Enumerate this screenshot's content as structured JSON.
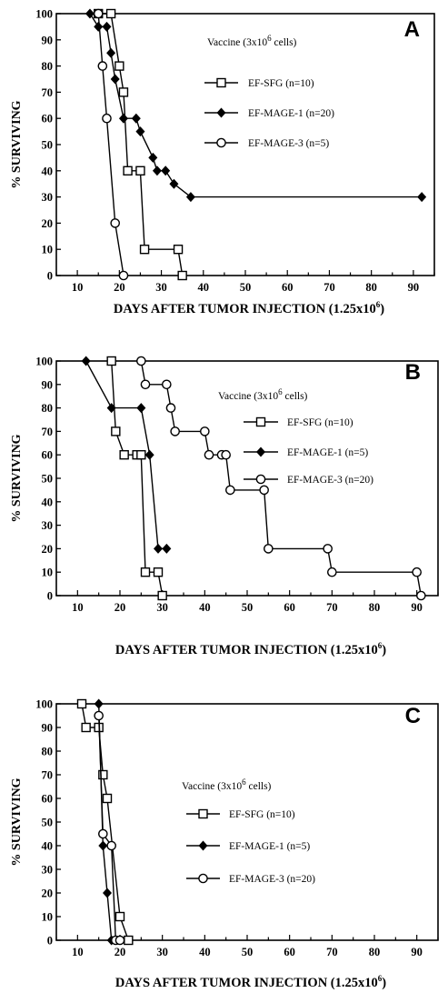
{
  "chart_data": [
    {
      "type": "line",
      "panel_letter": "A",
      "ylabel": "% SURVIVING",
      "xlabel": "DAYS AFTER TUMOR INJECTION (1.25x10",
      "xlabel_sup": "6",
      "xlabel_end": ")",
      "legend_title": "Vaccine (3x10",
      "legend_title_sup": "6",
      "legend_title_end": " cells)",
      "xlim": [
        5,
        95
      ],
      "ylim": [
        0,
        100
      ],
      "x_ticks": [
        10,
        20,
        30,
        40,
        50,
        60,
        70,
        80,
        90
      ],
      "y_ticks": [
        0,
        10,
        20,
        30,
        40,
        50,
        60,
        70,
        80,
        90,
        100
      ],
      "series": [
        {
          "name": "EF-SFG (n=10)",
          "marker": "square",
          "x": [
            15,
            18,
            20,
            21,
            22,
            25,
            26,
            34,
            35
          ],
          "y": [
            100,
            100,
            80,
            70,
            40,
            40,
            10,
            10,
            0
          ]
        },
        {
          "name": "EF-MAGE-1 (n=20)",
          "marker": "diamond",
          "x": [
            13,
            15,
            17,
            18,
            19,
            21,
            24,
            25,
            28,
            29,
            31,
            33,
            37,
            92
          ],
          "y": [
            100,
            95,
            95,
            85,
            75,
            60,
            60,
            55,
            45,
            40,
            40,
            35,
            30,
            30
          ]
        },
        {
          "name": "EF-MAGE-3 (n=5)",
          "marker": "circle",
          "x": [
            15,
            16,
            17,
            19,
            21
          ],
          "y": [
            100,
            80,
            60,
            20,
            0
          ]
        }
      ]
    },
    {
      "type": "line",
      "panel_letter": "B",
      "ylabel": "% SURVIVING",
      "xlabel": "DAYS AFTER TUMOR INJECTION (1.25x10",
      "xlabel_sup": "6",
      "xlabel_end": ")",
      "legend_title": "Vaccine (3x10",
      "legend_title_sup": "6",
      "legend_title_end": " cells)",
      "xlim": [
        5,
        95
      ],
      "ylim": [
        0,
        100
      ],
      "x_ticks": [
        10,
        20,
        30,
        40,
        50,
        60,
        70,
        80,
        90
      ],
      "y_ticks": [
        0,
        10,
        20,
        30,
        40,
        50,
        60,
        70,
        80,
        90,
        100
      ],
      "series": [
        {
          "name": "EF-SFG (n=10)",
          "marker": "square",
          "x": [
            18,
            19,
            21,
            24,
            25,
            26,
            29,
            30
          ],
          "y": [
            100,
            70,
            60,
            60,
            60,
            10,
            10,
            0
          ]
        },
        {
          "name": "EF-MAGE-1 (n=5)",
          "marker": "diamond",
          "x": [
            12,
            18,
            25,
            27,
            29,
            31
          ],
          "y": [
            100,
            80,
            80,
            60,
            20,
            20
          ]
        },
        {
          "name": "EF-MAGE-3 (n=20)",
          "marker": "circle",
          "x": [
            25,
            26,
            31,
            32,
            33,
            40,
            41,
            44,
            45,
            46,
            54,
            55,
            69,
            70,
            90,
            91
          ],
          "y": [
            100,
            90,
            90,
            80,
            70,
            70,
            60,
            60,
            60,
            45,
            45,
            20,
            20,
            10,
            10,
            0
          ]
        }
      ]
    },
    {
      "type": "line",
      "panel_letter": "C",
      "ylabel": "% SURVIVING",
      "xlabel": "DAYS AFTER TUMOR INJECTION (1.25x10",
      "xlabel_sup": "6",
      "xlabel_end": ")",
      "legend_title": "Vaccine (3x10",
      "legend_title_sup": "6",
      "legend_title_end": " cells)",
      "xlim": [
        5,
        95
      ],
      "ylim": [
        0,
        100
      ],
      "x_ticks": [
        10,
        20,
        30,
        40,
        50,
        60,
        70,
        80,
        90
      ],
      "y_ticks": [
        0,
        10,
        20,
        30,
        40,
        50,
        60,
        70,
        80,
        90,
        100
      ],
      "series": [
        {
          "name": "EF-SFG (n=10)",
          "marker": "square",
          "x": [
            11,
            12,
            15,
            16,
            17,
            20,
            22
          ],
          "y": [
            100,
            90,
            90,
            70,
            60,
            10,
            0
          ]
        },
        {
          "name": "EF-MAGE-1 (n=5)",
          "marker": "diamond",
          "x": [
            15,
            16,
            17,
            18
          ],
          "y": [
            100,
            40,
            20,
            0
          ]
        },
        {
          "name": "EF-MAGE-3 (n=20)",
          "marker": "circle",
          "x": [
            15,
            16,
            18,
            19,
            20
          ],
          "y": [
            95,
            45,
            40,
            0,
            0
          ]
        }
      ]
    }
  ]
}
